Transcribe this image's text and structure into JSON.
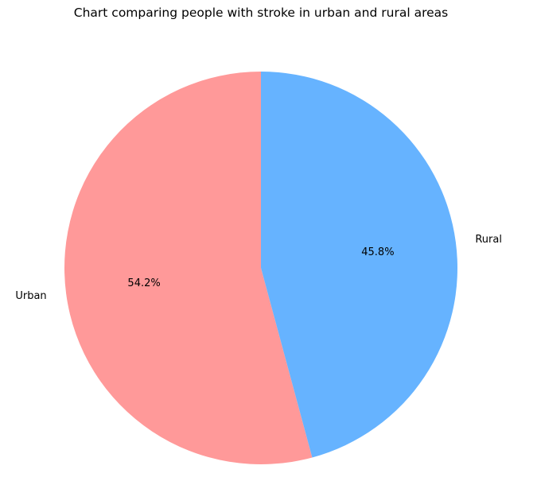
{
  "chart_data": {
    "type": "pie",
    "title": "Chart comparing people with stroke in urban and rural areas",
    "labels": [
      "Urban",
      "Rural"
    ],
    "values": [
      54.2,
      45.8
    ],
    "percent_labels": [
      "54.2%",
      "45.8%"
    ],
    "colors": [
      "#ff9999",
      "#66b3ff"
    ],
    "start_angle_deg": 90,
    "direction": "counterclockwise",
    "legend": "none"
  }
}
